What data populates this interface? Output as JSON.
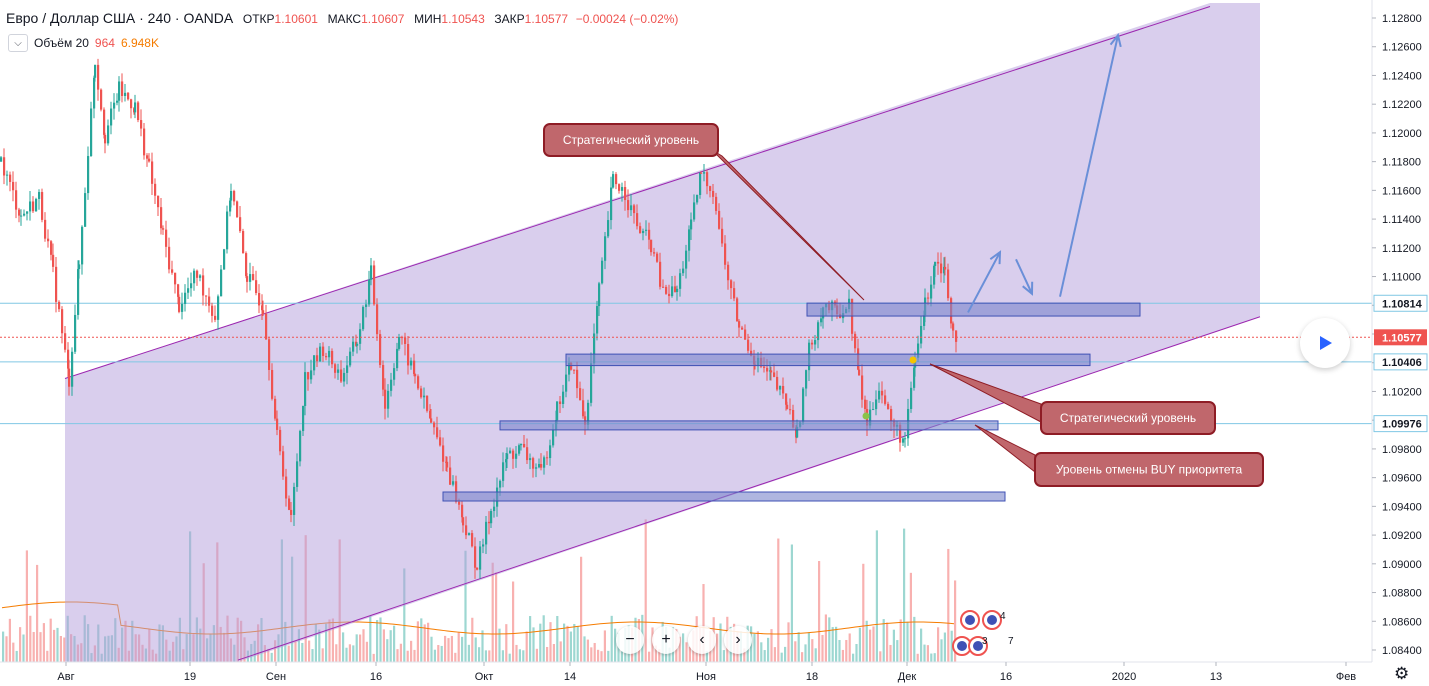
{
  "header": {
    "symbol": "Евро / Доллар США · 240 · OANDA",
    "open_label": "ОТКР",
    "open_value": "1.10601",
    "high_label": "МАКС",
    "high_value": "1.10607",
    "low_label": "МИН",
    "low_value": "1.10543",
    "close_label": "ЗАКР",
    "close_value": "1.10577",
    "change": "−0.00024 (−0.02%)"
  },
  "volume_legend": {
    "label": "Объём 20",
    "value": "964",
    "ma_value": "6.948K",
    "toggle_icon": "chevron-down-icon"
  },
  "colors": {
    "up": "#26a69a",
    "down": "#ef5350",
    "channel_fill": "#b39ddb",
    "channel_line": "#9c27b0",
    "zone_fill": "#7986cb",
    "zone_border": "#3f51b5",
    "callout_fill": "#c0676c",
    "callout_border": "#8e1c25",
    "arrow": "#6a8fd8",
    "hline": "#80c7e4",
    "price_line": "#ef5350",
    "volume_ma": "#f57c00"
  },
  "chart_data": {
    "type": "candlestick",
    "title": "Евро / Доллар США · 240 · OANDA",
    "x_labels": [
      "Авг",
      "19",
      "Сен",
      "16",
      "Окт",
      "14",
      "Ноя",
      "18",
      "Дек",
      "16",
      "2020",
      "13",
      "Фев"
    ],
    "y_ticks": [
      "1.12800",
      "1.12600",
      "1.12400",
      "1.12200",
      "1.12000",
      "1.11800",
      "1.11600",
      "1.11400",
      "1.11200",
      "1.11000",
      "1.10800",
      "1.10600",
      "1.10400",
      "1.10200",
      "1.10000",
      "1.09800",
      "1.09600",
      "1.09400",
      "1.09200",
      "1.09000",
      "1.08800",
      "1.08600",
      "1.08400"
    ],
    "ylim": [
      1.0833,
      1.1287
    ],
    "price_trail": [
      {
        "x": 0,
        "y": 1.118
      },
      {
        "x": 20,
        "y": 1.1142
      },
      {
        "x": 38,
        "y": 1.1155
      },
      {
        "x": 52,
        "y": 1.1102
      },
      {
        "x": 68,
        "y": 1.1028
      },
      {
        "x": 78,
        "y": 1.1108
      },
      {
        "x": 94,
        "y": 1.125
      },
      {
        "x": 104,
        "y": 1.1198
      },
      {
        "x": 118,
        "y": 1.123
      },
      {
        "x": 134,
        "y": 1.1218
      },
      {
        "x": 148,
        "y": 1.1175
      },
      {
        "x": 162,
        "y": 1.1128
      },
      {
        "x": 178,
        "y": 1.108
      },
      {
        "x": 196,
        "y": 1.1102
      },
      {
        "x": 214,
        "y": 1.1072
      },
      {
        "x": 230,
        "y": 1.1162
      },
      {
        "x": 246,
        "y": 1.11
      },
      {
        "x": 262,
        "y": 1.108
      },
      {
        "x": 276,
        "y": 1.0988
      },
      {
        "x": 290,
        "y": 1.093
      },
      {
        "x": 304,
        "y": 1.103
      },
      {
        "x": 322,
        "y": 1.105
      },
      {
        "x": 340,
        "y": 1.103
      },
      {
        "x": 356,
        "y": 1.1055
      },
      {
        "x": 370,
        "y": 1.1102
      },
      {
        "x": 384,
        "y": 1.101
      },
      {
        "x": 398,
        "y": 1.1058
      },
      {
        "x": 414,
        "y": 1.103
      },
      {
        "x": 430,
        "y": 1.0998
      },
      {
        "x": 446,
        "y": 1.0968
      },
      {
        "x": 462,
        "y": 1.093
      },
      {
        "x": 476,
        "y": 1.0898
      },
      {
        "x": 490,
        "y": 1.0938
      },
      {
        "x": 506,
        "y": 1.0975
      },
      {
        "x": 520,
        "y": 1.098
      },
      {
        "x": 540,
        "y": 1.0962
      },
      {
        "x": 556,
        "y": 1.1008
      },
      {
        "x": 570,
        "y": 1.104
      },
      {
        "x": 584,
        "y": 1.0998
      },
      {
        "x": 598,
        "y": 1.109
      },
      {
        "x": 612,
        "y": 1.1168
      },
      {
        "x": 624,
        "y": 1.1158
      },
      {
        "x": 636,
        "y": 1.1135
      },
      {
        "x": 650,
        "y": 1.1122
      },
      {
        "x": 662,
        "y": 1.1088
      },
      {
        "x": 676,
        "y": 1.109
      },
      {
        "x": 690,
        "y": 1.1135
      },
      {
        "x": 700,
        "y": 1.1172
      },
      {
        "x": 712,
        "y": 1.116
      },
      {
        "x": 724,
        "y": 1.1108
      },
      {
        "x": 738,
        "y": 1.1065
      },
      {
        "x": 754,
        "y": 1.1042
      },
      {
        "x": 770,
        "y": 1.103
      },
      {
        "x": 786,
        "y": 1.101
      },
      {
        "x": 796,
        "y": 1.099
      },
      {
        "x": 808,
        "y": 1.1048
      },
      {
        "x": 822,
        "y": 1.108
      },
      {
        "x": 836,
        "y": 1.1075
      },
      {
        "x": 848,
        "y": 1.108
      },
      {
        "x": 858,
        "y": 1.1028
      },
      {
        "x": 866,
        "y": 1.0998
      },
      {
        "x": 878,
        "y": 1.1025
      },
      {
        "x": 890,
        "y": 1.0998
      },
      {
        "x": 904,
        "y": 1.0985
      },
      {
        "x": 914,
        "y": 1.1042
      },
      {
        "x": 924,
        "y": 1.108
      },
      {
        "x": 934,
        "y": 1.1112
      },
      {
        "x": 944,
        "y": 1.1105
      },
      {
        "x": 952,
        "y": 1.1062
      },
      {
        "x": 958,
        "y": 1.1058
      }
    ],
    "channel": {
      "upper": [
        {
          "x": 65,
          "y": 1.1029
        },
        {
          "x": 1210,
          "y": 1.1288
        }
      ],
      "lower": [
        {
          "x": 238,
          "y": 1.0833
        },
        {
          "x": 1260,
          "y": 1.1072
        }
      ]
    },
    "zones": [
      {
        "x0": 807,
        "x1": 1140,
        "top": 1.10815,
        "bottom": 1.10725
      },
      {
        "x0": 566,
        "x1": 1090,
        "top": 1.1046,
        "bottom": 1.1038
      },
      {
        "x0": 500,
        "x1": 998,
        "top": 1.09995,
        "bottom": 1.09945
      },
      {
        "x0": 443,
        "x1": 1005,
        "top": 1.095,
        "bottom": 1.0945
      }
    ],
    "horizontal_levels": [
      "1.10814",
      "1.10406",
      "1.09976"
    ],
    "current_price": "1.10577",
    "annotations": [
      {
        "text": "Стратегический уровень",
        "pointer": "to-upper-zone"
      },
      {
        "text": "Стратегический уровень",
        "pointer": "to-middle-zone"
      },
      {
        "text": "Уровень отмены BUY приоритета",
        "pointer": "to-lower-zone"
      }
    ],
    "forecast_path": [
      {
        "x": 968,
        "y": 1.1075
      },
      {
        "x": 1000,
        "y": 1.1117
      },
      {
        "x": 1016,
        "y": 1.1112
      },
      {
        "x": 1032,
        "y": 1.1088
      },
      {
        "x": 1060,
        "y": 1.1086
      },
      {
        "x": 1118,
        "y": 1.1268
      }
    ]
  },
  "nav": {
    "zoom_out_icon": "minus-icon",
    "reset_icon": "reset-icon",
    "zoom_in_icon": "plus-icon",
    "back_icon": "chevron-left-icon",
    "forward_icon": "chevron-right-icon",
    "zoom_out_glyph": "−",
    "zoom_in_glyph": "+",
    "reset_glyph": "⟲",
    "back_glyph": "‹",
    "forward_glyph": "›"
  },
  "events": {
    "count_top": "4",
    "count_mid": "3",
    "count_mid2": "7",
    "icon": "event-flag-icon"
  },
  "controls": {
    "play_icon": "play-icon",
    "settings_icon": "gear-icon",
    "settings_glyph": "⚙"
  }
}
